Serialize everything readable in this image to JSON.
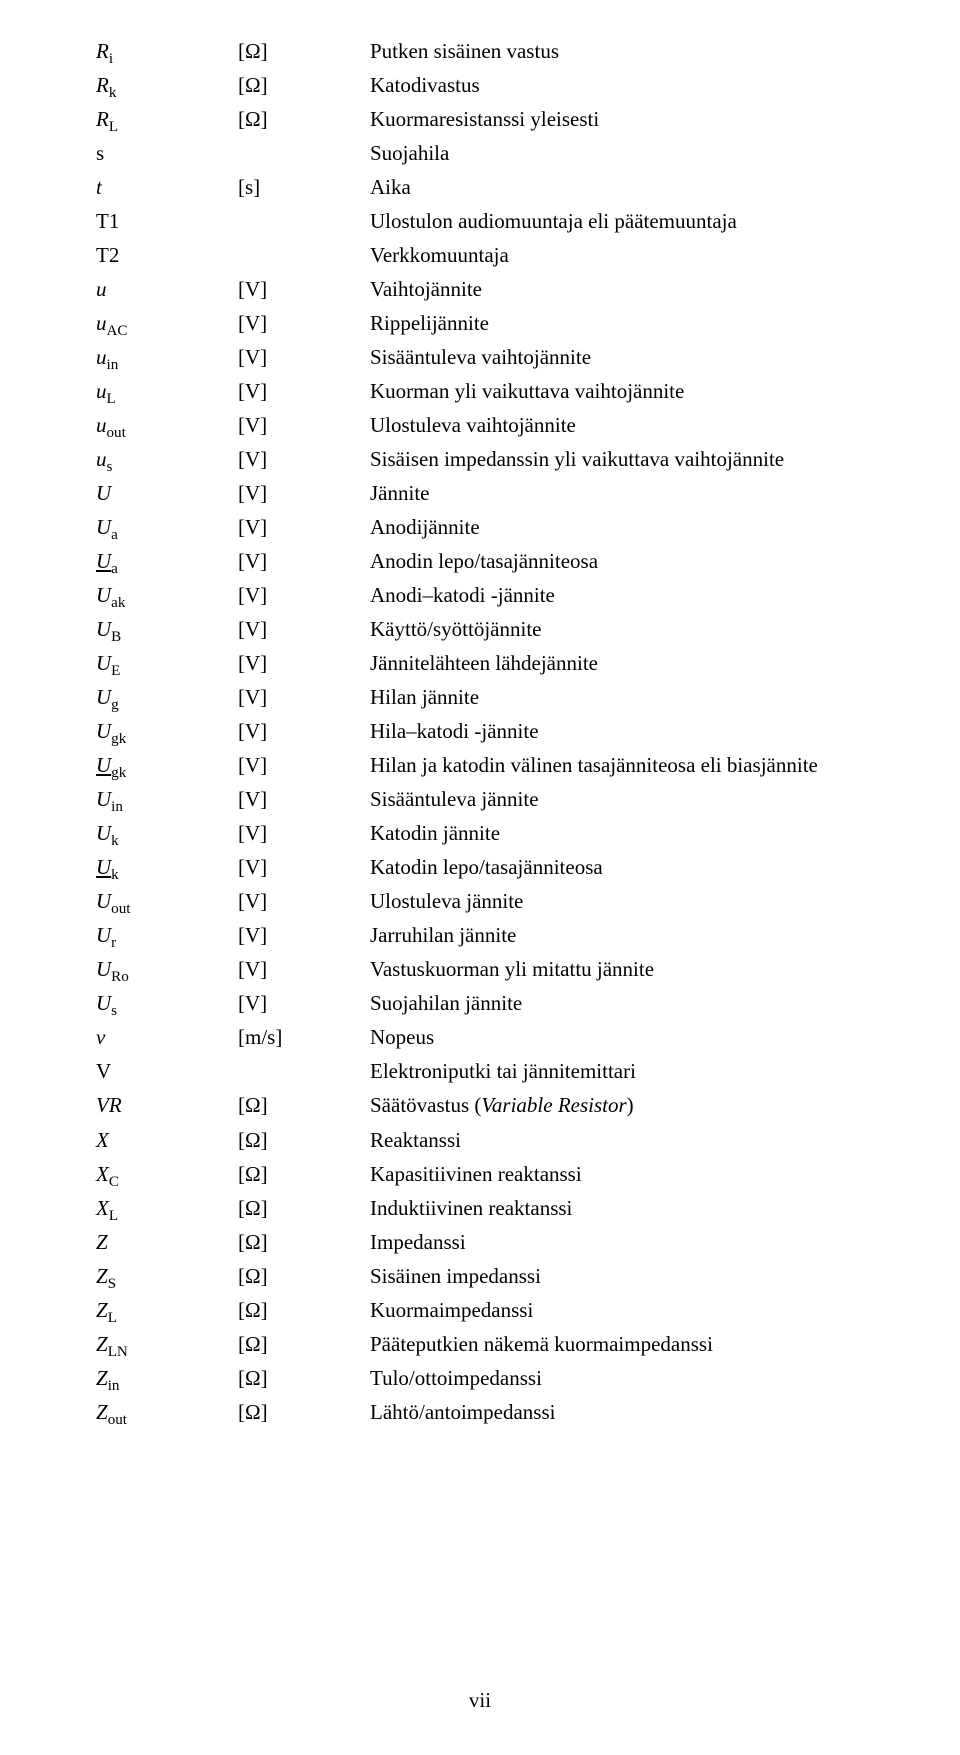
{
  "page_number": "vii",
  "rows": [
    {
      "sym_base": "R",
      "sym_sub": "i",
      "sym_italic": true,
      "sym_underline": false,
      "unit": "[Ω]",
      "desc": "Putken sisäinen vastus"
    },
    {
      "sym_base": "R",
      "sym_sub": "k",
      "sym_italic": true,
      "sym_underline": false,
      "unit": "[Ω]",
      "desc": "Katodivastus"
    },
    {
      "sym_base": "R",
      "sym_sub": "L",
      "sym_italic": true,
      "sym_underline": false,
      "unit": "[Ω]",
      "desc": "Kuormaresistanssi yleisesti"
    },
    {
      "sym_base": "s",
      "sym_sub": "",
      "sym_italic": false,
      "sym_underline": false,
      "unit": "",
      "desc": "Suojahila"
    },
    {
      "sym_base": "t",
      "sym_sub": "",
      "sym_italic": true,
      "sym_underline": false,
      "unit": "[s]",
      "desc": "Aika"
    },
    {
      "sym_base": "T1",
      "sym_sub": "",
      "sym_italic": false,
      "sym_underline": false,
      "unit": "",
      "desc": "Ulostulon audiomuuntaja eli päätemuuntaja"
    },
    {
      "sym_base": "T2",
      "sym_sub": "",
      "sym_italic": false,
      "sym_underline": false,
      "unit": "",
      "desc": "Verkkomuuntaja"
    },
    {
      "sym_base": "u",
      "sym_sub": "",
      "sym_italic": true,
      "sym_underline": false,
      "unit": "[V]",
      "desc": "Vaihtojännite"
    },
    {
      "sym_base": "u",
      "sym_sub": "AC",
      "sym_italic": true,
      "sym_underline": false,
      "unit": "[V]",
      "desc": "Rippelijännite"
    },
    {
      "sym_base": "u",
      "sym_sub": "in",
      "sym_italic": true,
      "sym_underline": false,
      "unit": "[V]",
      "desc": "Sisääntuleva vaihtojännite"
    },
    {
      "sym_base": "u",
      "sym_sub": "L",
      "sym_italic": true,
      "sym_underline": false,
      "unit": "[V]",
      "desc": "Kuorman yli vaikuttava vaihtojännite"
    },
    {
      "sym_base": "u",
      "sym_sub": "out",
      "sym_italic": true,
      "sym_underline": false,
      "unit": "[V]",
      "desc": "Ulostuleva vaihtojännite"
    },
    {
      "sym_base": "u",
      "sym_sub": "s",
      "sym_italic": true,
      "sym_underline": false,
      "unit": "[V]",
      "desc": "Sisäisen impedanssin yli vaikuttava vaihtojännite"
    },
    {
      "sym_base": "U",
      "sym_sub": "",
      "sym_italic": true,
      "sym_underline": false,
      "unit": "[V]",
      "desc": "Jännite"
    },
    {
      "sym_base": "U",
      "sym_sub": "a",
      "sym_italic": true,
      "sym_underline": false,
      "unit": "[V]",
      "desc": "Anodijännite"
    },
    {
      "sym_base": "U",
      "sym_sub": "a",
      "sym_italic": true,
      "sym_underline": true,
      "unit": "[V]",
      "desc": "Anodin lepo/tasajänniteosa"
    },
    {
      "sym_base": "U",
      "sym_sub": "ak",
      "sym_italic": true,
      "sym_underline": false,
      "unit": "[V]",
      "desc": "Anodi–katodi -jännite"
    },
    {
      "sym_base": "U",
      "sym_sub": "B",
      "sym_italic": true,
      "sym_underline": false,
      "unit": "[V]",
      "desc": "Käyttö/syöttöjännite"
    },
    {
      "sym_base": "U",
      "sym_sub": "E",
      "sym_italic": true,
      "sym_underline": false,
      "unit": "[V]",
      "desc": "Jännitelähteen lähdejännite"
    },
    {
      "sym_base": "U",
      "sym_sub": "g",
      "sym_italic": true,
      "sym_underline": false,
      "unit": "[V]",
      "desc": "Hilan jännite"
    },
    {
      "sym_base": "U",
      "sym_sub": "gk",
      "sym_italic": true,
      "sym_underline": false,
      "unit": "[V]",
      "desc": "Hila–katodi -jännite"
    },
    {
      "sym_base": "U",
      "sym_sub": "gk",
      "sym_italic": true,
      "sym_underline": true,
      "unit": "[V]",
      "desc": "Hilan ja katodin välinen tasajänniteosa eli biasjännite"
    },
    {
      "sym_base": "U",
      "sym_sub": "in",
      "sym_italic": true,
      "sym_underline": false,
      "unit": "[V]",
      "desc": "Sisääntuleva jännite"
    },
    {
      "sym_base": "U",
      "sym_sub": "k",
      "sym_italic": true,
      "sym_underline": false,
      "unit": "[V]",
      "desc": "Katodin jännite"
    },
    {
      "sym_base": "U",
      "sym_sub": "k",
      "sym_italic": true,
      "sym_underline": true,
      "unit": "[V]",
      "desc": "Katodin lepo/tasajänniteosa"
    },
    {
      "sym_base": "U",
      "sym_sub": "out",
      "sym_italic": true,
      "sym_underline": false,
      "unit": "[V]",
      "desc": "Ulostuleva jännite"
    },
    {
      "sym_base": "U",
      "sym_sub": "r",
      "sym_italic": true,
      "sym_underline": false,
      "unit": "[V]",
      "desc": "Jarruhilan jännite"
    },
    {
      "sym_base": "U",
      "sym_sub": "Ro",
      "sym_italic": true,
      "sym_underline": false,
      "unit": "[V]",
      "desc": "Vastuskuorman yli mitattu jännite"
    },
    {
      "sym_base": "U",
      "sym_sub": "s",
      "sym_italic": true,
      "sym_underline": false,
      "unit": "[V]",
      "desc": "Suojahilan jännite"
    },
    {
      "sym_base": "v",
      "sym_sub": "",
      "sym_italic": true,
      "sym_underline": false,
      "unit": "[m/s]",
      "desc": "Nopeus"
    },
    {
      "sym_base": "V",
      "sym_sub": "",
      "sym_italic": false,
      "sym_underline": false,
      "unit": "",
      "desc": "Elektroniputki tai jännitemittari"
    },
    {
      "sym_base": "VR",
      "sym_sub": "",
      "sym_italic": true,
      "sym_underline": false,
      "unit": "[Ω]",
      "desc": "Säätövastus (<i>Variable Resistor</i>)",
      "desc_html": true
    },
    {
      "sym_base": "X",
      "sym_sub": "",
      "sym_italic": true,
      "sym_underline": false,
      "unit": "[Ω]",
      "desc": "Reaktanssi"
    },
    {
      "sym_base": "X",
      "sym_sub": "C",
      "sym_italic": true,
      "sym_underline": false,
      "unit": "[Ω]",
      "desc": "Kapasitiivinen reaktanssi"
    },
    {
      "sym_base": "X",
      "sym_sub": "L",
      "sym_italic": true,
      "sym_underline": false,
      "unit": "[Ω]",
      "desc": "Induktiivinen reaktanssi"
    },
    {
      "sym_base": "Z",
      "sym_sub": "",
      "sym_italic": true,
      "sym_underline": false,
      "unit": "[Ω]",
      "desc": "Impedanssi"
    },
    {
      "sym_base": "Z",
      "sym_sub": "S",
      "sym_italic": true,
      "sym_underline": false,
      "unit": "[Ω]",
      "desc": "Sisäinen impedanssi"
    },
    {
      "sym_base": "Z",
      "sym_sub": "L",
      "sym_italic": true,
      "sym_underline": false,
      "unit": "[Ω]",
      "desc": "Kuormaimpedanssi"
    },
    {
      "sym_base": "Z",
      "sym_sub": "LN",
      "sym_italic": true,
      "sym_underline": false,
      "unit": "[Ω]",
      "desc": "Pääteputkien näkemä kuormaimpedanssi"
    },
    {
      "sym_base": "Z",
      "sym_sub": "in",
      "sym_italic": true,
      "sym_underline": false,
      "unit": "[Ω]",
      "desc": "Tulo/ottoimpedanssi"
    },
    {
      "sym_base": "Z",
      "sym_sub": "out",
      "sym_italic": true,
      "sym_underline": false,
      "unit": "[Ω]",
      "desc": "Lähtö/antoimpedanssi"
    }
  ]
}
